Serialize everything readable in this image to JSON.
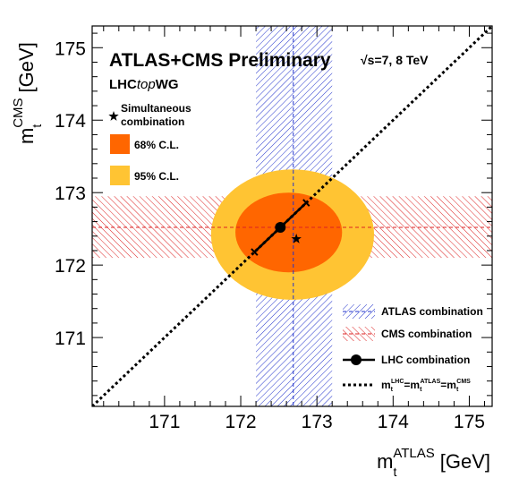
{
  "chart_data": {
    "type": "scatter",
    "title": "ATLAS+CMS Preliminary",
    "energy_label": "√s=7, 8 TeV",
    "group_prefix": "LHC",
    "group_italic": "top",
    "group_suffix": "WG",
    "x_axis": {
      "label_base": "m",
      "label_sub": "t",
      "label_sup": "ATLAS",
      "label_unit": "[GeV]",
      "range": [
        170.05,
        175.3
      ],
      "ticks": [
        171,
        172,
        173,
        174,
        175
      ]
    },
    "y_axis": {
      "label_base": "m",
      "label_sub": "t",
      "label_sup": "CMS",
      "label_unit": "[GeV]",
      "range": [
        170.05,
        175.3
      ],
      "ticks": [
        171,
        172,
        173,
        174,
        175
      ]
    },
    "atlas_combination": {
      "value": 172.69,
      "low": 172.2,
      "high": 173.2
    },
    "cms_combination": {
      "value": 172.52,
      "low": 172.1,
      "high": 172.95
    },
    "simultaneous_combination": {
      "x": 172.73,
      "y": 172.36
    },
    "lhc_combination": {
      "point": {
        "x": 172.52,
        "y": 172.52
      },
      "segment": [
        {
          "x": 172.18,
          "y": 172.18
        },
        {
          "x": 172.86,
          "y": 172.86
        }
      ]
    },
    "ellipse_95": {
      "cx": 172.68,
      "cy": 172.42,
      "rx": 1.07,
      "ry": 0.9
    },
    "ellipse_68": {
      "cx": 172.63,
      "cy": 172.45,
      "rx": 0.7,
      "ry": 0.55
    },
    "legend_left": [
      {
        "label_line1": "Simultaneous",
        "label_line2": "combination",
        "marker": "star"
      },
      {
        "label": "68% C.L.",
        "color": "#ff6600"
      },
      {
        "label": "95% C.L.",
        "color": "#ffc433"
      }
    ],
    "legend_right": [
      {
        "label": "ATLAS combination",
        "color": "#0000cc",
        "marker": "hatch-vertical"
      },
      {
        "label": "CMS combination",
        "color": "#cc0000",
        "marker": "hatch-horizontal"
      },
      {
        "label": "LHC combination",
        "color": "#000000",
        "marker": "point-line"
      },
      {
        "label_base": "m",
        "label_sub": "t",
        "sup_lhc": "LHC",
        "sup_atlas": "ATLAS",
        "sup_cms": "CMS",
        "marker": "dotted"
      }
    ],
    "colors": {
      "cl68": "#ff6600",
      "cl95": "#ffc433",
      "atlas": "#0000cc",
      "cms": "#cc0000"
    }
  }
}
